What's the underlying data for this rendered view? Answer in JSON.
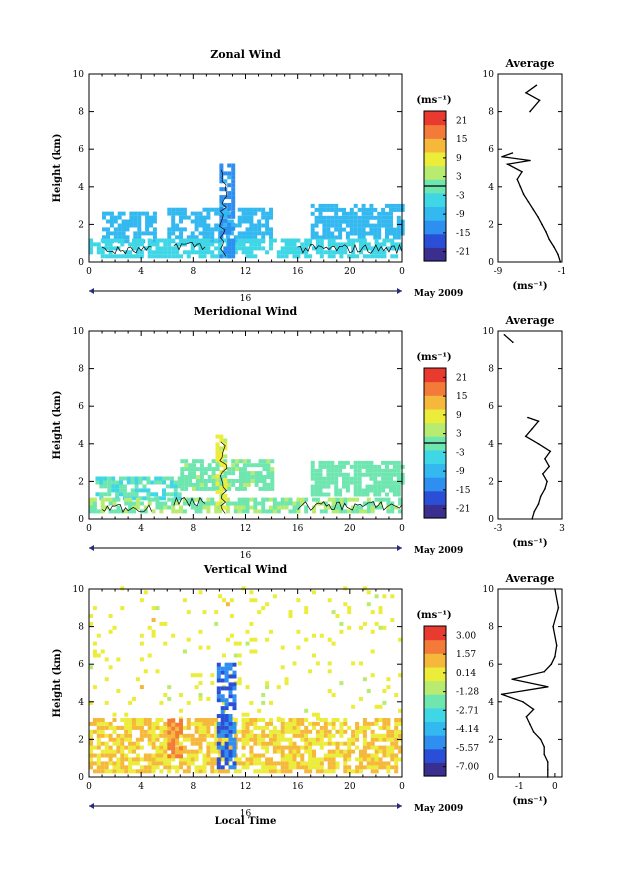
{
  "colormap": [
    "#3a2f8f",
    "#2a4fd6",
    "#2f8ff0",
    "#33b8f0",
    "#3fd6e6",
    "#6fe6b0",
    "#b8ec70",
    "#ecec3a",
    "#f6b83a",
    "#f47a3a",
    "#e83a2f"
  ],
  "date_label": "May 2009",
  "x_axis_label": "Local Time",
  "chart_data": [
    {
      "type": "heatmap",
      "title": "Zonal Wind",
      "ylabel": "Height (km)",
      "xlim": [
        0,
        24
      ],
      "ylim": [
        0,
        10
      ],
      "x_ticks": [
        "0",
        "4",
        "8",
        "12",
        "16",
        "20",
        "0"
      ],
      "y_ticks": [
        "0",
        "2",
        "4",
        "6",
        "8",
        "10"
      ],
      "day_label": "16",
      "colorbar": {
        "unit": "(ms⁻¹)",
        "ticks": [
          "21",
          "15",
          "9",
          "3",
          "-3",
          "-9",
          "-15",
          "-21"
        ],
        "range": [
          -24,
          24
        ]
      },
      "field_regions": [
        {
          "x": [
            1,
            5
          ],
          "y": [
            1.0,
            2.6
          ],
          "value": -8
        },
        {
          "x": [
            6,
            14
          ],
          "y": [
            1.0,
            2.8
          ],
          "value": -9
        },
        {
          "x": [
            17,
            24
          ],
          "y": [
            1.2,
            3.0
          ],
          "value": -9
        },
        {
          "x": [
            0,
            24
          ],
          "y": [
            0.2,
            1.1
          ],
          "value": -4
        },
        {
          "x": [
            10,
            11.2
          ],
          "y": [
            0.2,
            5.2
          ],
          "value": -12
        }
      ],
      "contour_value": 0,
      "profile": {
        "title": "Average",
        "xlim": [
          -9,
          -1
        ],
        "x_ticks": [
          "-9",
          "-1"
        ],
        "unit": "(ms⁻¹)",
        "heights": [
          0.0,
          0.4,
          0.8,
          1.2,
          1.6,
          2.0,
          2.4,
          2.8,
          3.2,
          3.6,
          4.0,
          4.4,
          4.8,
          5.2,
          5.4,
          5.6,
          5.8,
          8.0,
          8.6,
          9.0,
          9.4
        ],
        "values": [
          -1.2,
          -1.5,
          -2.0,
          -2.6,
          -3.0,
          -3.5,
          -4.0,
          -4.6,
          -5.2,
          -5.8,
          -6.2,
          -6.6,
          -6.0,
          -7.8,
          -5.0,
          -8.5,
          -7.2,
          -5.0,
          -3.8,
          -5.5,
          -4.2
        ]
      }
    },
    {
      "type": "heatmap",
      "title": "Meridional Wind",
      "ylabel": "Height (km)",
      "xlim": [
        0,
        24
      ],
      "ylim": [
        0,
        10
      ],
      "x_ticks": [
        "0",
        "4",
        "8",
        "12",
        "16",
        "20",
        "0"
      ],
      "y_ticks": [
        "0",
        "2",
        "4",
        "6",
        "8",
        "10"
      ],
      "day_label": "16",
      "colorbar": {
        "unit": "(ms⁻¹)",
        "ticks": [
          "21",
          "15",
          "9",
          "3",
          "-3",
          "-9",
          "-15",
          "-21"
        ],
        "range": [
          -24,
          24
        ]
      },
      "field_regions": [
        {
          "x": [
            0.5,
            7
          ],
          "y": [
            1.0,
            2.2
          ],
          "value": -2
        },
        {
          "x": [
            7,
            14
          ],
          "y": [
            1.5,
            3.0
          ],
          "value": 1
        },
        {
          "x": [
            17,
            24
          ],
          "y": [
            1.2,
            3.0
          ],
          "value": 0
        },
        {
          "x": [
            0,
            24
          ],
          "y": [
            0.3,
            1.1
          ],
          "value": 2
        },
        {
          "x": [
            9.7,
            10.6
          ],
          "y": [
            0.5,
            4.4
          ],
          "value": 7
        }
      ],
      "contour_value": 0,
      "profile": {
        "title": "Average",
        "xlim": [
          -3,
          3
        ],
        "x_ticks": [
          "-3",
          "3"
        ],
        "unit": "(ms⁻¹)",
        "heights": [
          0.0,
          0.4,
          0.8,
          1.2,
          1.6,
          2.0,
          2.4,
          2.8,
          3.2,
          3.6,
          4.0,
          4.4,
          4.8,
          5.2,
          5.4,
          9.4,
          9.8
        ],
        "values": [
          0.2,
          0.4,
          0.8,
          1.0,
          1.4,
          1.6,
          1.2,
          1.8,
          1.4,
          1.9,
          0.8,
          -0.4,
          0.2,
          0.8,
          -0.2,
          -1.6,
          -2.4
        ]
      }
    },
    {
      "type": "heatmap",
      "title": "Vertical Wind",
      "ylabel": "Height (km)",
      "xlabel": "Local Time",
      "xlim": [
        0,
        24
      ],
      "ylim": [
        0,
        10
      ],
      "x_ticks": [
        "0",
        "4",
        "8",
        "12",
        "16",
        "20",
        "0"
      ],
      "y_ticks": [
        "0",
        "2",
        "4",
        "6",
        "8",
        "10"
      ],
      "day_label": "16",
      "colorbar": {
        "unit": "(ms⁻¹)",
        "ticks": [
          "3.00",
          "1.57",
          "0.14",
          "-1.28",
          "-2.71",
          "-4.14",
          "-5.57",
          "-7.00"
        ],
        "range": [
          -7.7,
          3.7
        ]
      },
      "field_regions": [
        {
          "x": [
            0,
            24
          ],
          "y": [
            0.2,
            3.0
          ],
          "value": 0.6
        },
        {
          "x": [
            0,
            24
          ],
          "y": [
            3.0,
            10.0
          ],
          "value": 0.0
        },
        {
          "x": [
            6,
            7
          ],
          "y": [
            1.0,
            3.0
          ],
          "value": 1.8
        },
        {
          "x": [
            9.8,
            11.2
          ],
          "y": [
            0.2,
            6.0
          ],
          "value": -5.5
        }
      ],
      "contour_value": null,
      "profile": {
        "title": "Average",
        "xlim": [
          -1.6,
          0.2
        ],
        "x_ticks": [
          "-1",
          "0"
        ],
        "unit": "(ms⁻¹)",
        "heights": [
          0.0,
          0.4,
          0.8,
          1.2,
          1.6,
          2.0,
          2.4,
          2.8,
          3.2,
          3.6,
          4.0,
          4.4,
          4.8,
          5.2,
          5.6,
          6.0,
          6.4,
          7.0,
          8.0,
          9.0,
          10.0
        ],
        "values": [
          -0.2,
          -0.2,
          -0.2,
          -0.3,
          -0.3,
          -0.4,
          -0.6,
          -0.7,
          -0.8,
          -0.6,
          -0.9,
          -1.5,
          -0.2,
          -1.2,
          -0.3,
          -0.1,
          0.0,
          0.05,
          -0.05,
          0.1,
          0.0
        ]
      }
    }
  ]
}
